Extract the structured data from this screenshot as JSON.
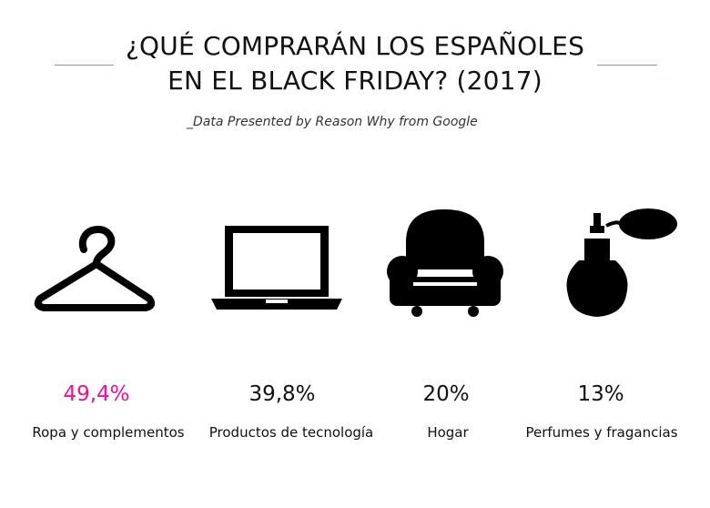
{
  "header": {
    "title_line1": "¿QUÉ COMPRARÁN LOS ESPAÑOLES",
    "title_line2": "EN EL BLACK FRIDAY? (2017)",
    "subtitle": "_Data Presented by Reason Why from Google"
  },
  "colors": {
    "accent": "#e8139a",
    "rule": "#33b5e5",
    "icon": "#000000",
    "text": "#111111"
  },
  "chart_data": {
    "type": "table",
    "categories": [
      "Ropa y complementos",
      "Productos de tecnología",
      "Hogar",
      "Perfumes y fragancias"
    ],
    "values": [
      49.4,
      39.8,
      20,
      13
    ],
    "value_labels": [
      "49,4%",
      "39,8%",
      "20%",
      "13%"
    ],
    "highlight_index": 0,
    "icons": [
      "hanger-icon",
      "laptop-icon",
      "armchair-icon",
      "perfume-icon"
    ]
  }
}
